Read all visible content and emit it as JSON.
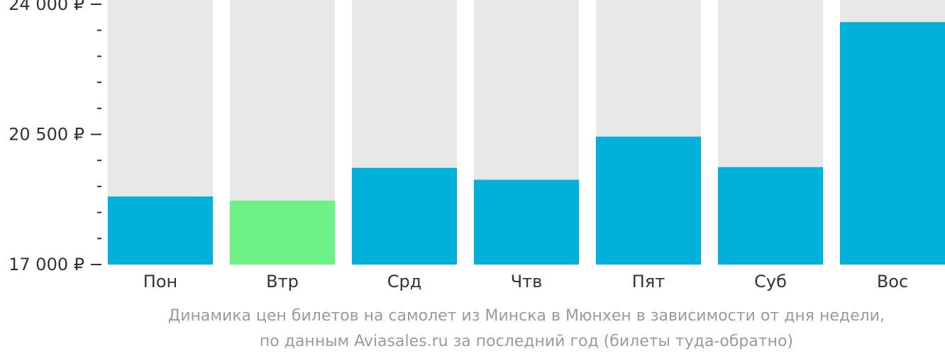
{
  "chart_data": {
    "type": "bar",
    "categories": [
      "Пон",
      "Втр",
      "Срд",
      "Чтв",
      "Пят",
      "Суб",
      "Вос"
    ],
    "values": [
      18830,
      18720,
      19600,
      19280,
      20440,
      19620,
      23520
    ],
    "highlight_index": 1,
    "ylim": [
      17000,
      24000
    ],
    "y_ticks": [
      {
        "value": 17000,
        "label": "17 000 ₽"
      },
      {
        "value": 20500,
        "label": "20 500 ₽"
      },
      {
        "value": 24000,
        "label": "24 000 ₽"
      }
    ],
    "y_minor_step": 700,
    "caption_lines": [
      "Динамика цен билетов на самолет из Минска в Мюнхен в зависимости от дня недели,",
      "по данным Aviasales.ru за последний год (билеты туда-обратно)"
    ],
    "colors": {
      "bar": "#02b0dc",
      "bar_highlight": "#6cf286",
      "bar_background": "#e8e8e8",
      "axis": "#333333",
      "caption": "#9b9b9b"
    }
  }
}
